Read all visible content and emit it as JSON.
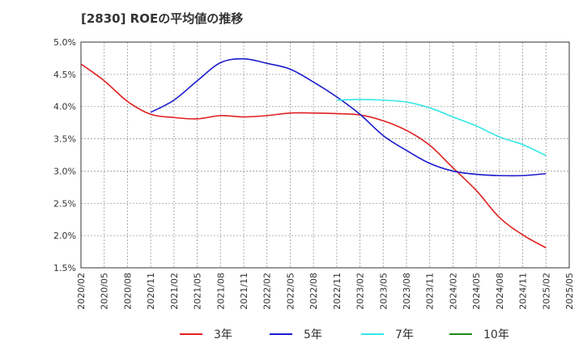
{
  "chart_data": {
    "type": "line",
    "title": "[2830]  ROEの平均値の推移",
    "xlabel": "",
    "ylabel": "",
    "x_ticks": [
      "2020/02",
      "2020/05",
      "2020/08",
      "2020/11",
      "2021/02",
      "2021/05",
      "2021/08",
      "2021/11",
      "2022/02",
      "2022/05",
      "2022/08",
      "2022/11",
      "2023/02",
      "2023/05",
      "2023/08",
      "2023/11",
      "2024/02",
      "2024/05",
      "2024/08",
      "2024/11",
      "2025/02",
      "2025/05"
    ],
    "y_ticks": [
      "1.5%",
      "2.0%",
      "2.5%",
      "3.0%",
      "3.5%",
      "4.0%",
      "4.5%",
      "5.0%"
    ],
    "ylim": [
      1.5,
      5.0
    ],
    "grid": true,
    "legend_position": "bottom",
    "series": [
      {
        "name": "3年",
        "color": "#e02020",
        "points": [
          [
            "2020/02",
            4.66
          ],
          [
            "2020/05",
            4.4
          ],
          [
            "2020/08",
            4.08
          ],
          [
            "2020/11",
            3.88
          ],
          [
            "2021/02",
            3.83
          ],
          [
            "2021/05",
            3.81
          ],
          [
            "2021/08",
            3.86
          ],
          [
            "2021/11",
            3.84
          ],
          [
            "2022/02",
            3.86
          ],
          [
            "2022/05",
            3.9
          ],
          [
            "2022/08",
            3.9
          ],
          [
            "2022/11",
            3.89
          ],
          [
            "2023/02",
            3.87
          ],
          [
            "2023/05",
            3.78
          ],
          [
            "2023/08",
            3.63
          ],
          [
            "2023/11",
            3.4
          ],
          [
            "2024/02",
            3.05
          ],
          [
            "2024/05",
            2.7
          ],
          [
            "2024/08",
            2.28
          ],
          [
            "2024/11",
            2.01
          ],
          [
            "2025/02",
            1.81
          ]
        ]
      },
      {
        "name": "5年",
        "color": "#1a1acc",
        "points": [
          [
            "2020/11",
            3.91
          ],
          [
            "2021/02",
            4.1
          ],
          [
            "2021/05",
            4.4
          ],
          [
            "2021/08",
            4.68
          ],
          [
            "2021/11",
            4.74
          ],
          [
            "2022/02",
            4.67
          ],
          [
            "2022/05",
            4.58
          ],
          [
            "2022/08",
            4.38
          ],
          [
            "2022/11",
            4.15
          ],
          [
            "2023/02",
            3.88
          ],
          [
            "2023/05",
            3.55
          ],
          [
            "2023/08",
            3.32
          ],
          [
            "2023/11",
            3.12
          ],
          [
            "2024/02",
            3.0
          ],
          [
            "2024/05",
            2.95
          ],
          [
            "2024/08",
            2.93
          ],
          [
            "2024/11",
            2.93
          ],
          [
            "2025/02",
            2.96
          ]
        ]
      },
      {
        "name": "7年",
        "color": "#33e6e6",
        "points": [
          [
            "2022/11",
            4.1
          ],
          [
            "2023/02",
            4.11
          ],
          [
            "2023/05",
            4.1
          ],
          [
            "2023/08",
            4.07
          ],
          [
            "2023/11",
            3.98
          ],
          [
            "2024/02",
            3.84
          ],
          [
            "2024/05",
            3.7
          ],
          [
            "2024/08",
            3.53
          ],
          [
            "2024/11",
            3.41
          ],
          [
            "2025/02",
            3.24
          ]
        ]
      },
      {
        "name": "10年",
        "color": "#1a8a1a",
        "points": []
      }
    ]
  }
}
